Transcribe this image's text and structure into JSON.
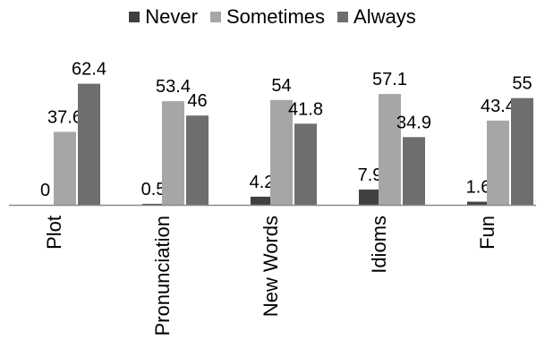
{
  "chart_data": {
    "type": "bar",
    "categories": [
      "Plot",
      "Pronunciation",
      "New Words",
      "Idioms",
      "Fun"
    ],
    "series": [
      {
        "name": "Never",
        "values": [
          0,
          0.5,
          4.2,
          7.9,
          1.6
        ],
        "color": "#404040"
      },
      {
        "name": "Sometimes",
        "values": [
          37.6,
          53.4,
          54,
          57.1,
          43.4
        ],
        "color": "#a6a6a6"
      },
      {
        "name": "Always",
        "values": [
          62.4,
          46,
          41.8,
          34.9,
          55
        ],
        "color": "#6e6e6e"
      }
    ],
    "data_labels": [
      [
        "0",
        "0.5",
        "4.2",
        "7.9",
        "1.6"
      ],
      [
        "37.6",
        "53.4",
        "54",
        "57.1",
        "43.4"
      ],
      [
        "62.4",
        "46",
        "41.8",
        "34.9",
        "55"
      ]
    ],
    "title": "",
    "xlabel": "",
    "ylabel": "",
    "ylim": [
      0,
      70
    ],
    "grid": false,
    "legend_position": "top"
  }
}
